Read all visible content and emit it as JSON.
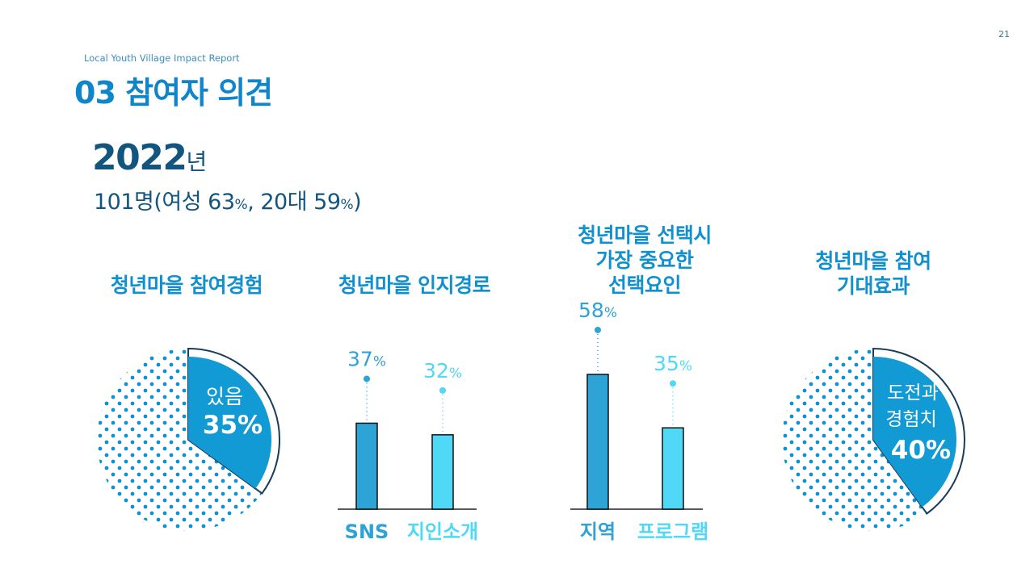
{
  "page_number": "21",
  "report_name": "Local Youth Village Impact Report",
  "section_title": "03 참여자 의견",
  "year": "2022",
  "year_unit": "년",
  "summary": {
    "prefix": "101명(여성 ",
    "female_pct": "63",
    "mid": ", 20대 ",
    "age_pct": "59",
    "pct_sign": "%",
    "close": ")",
    "comma": ""
  },
  "colors": {
    "primary": "#1190cf",
    "dark": "#12557f",
    "bar_dark": "#2ea3d6",
    "bar_light": "#4fd9f7",
    "slice": "#119ad3",
    "dot": "#1190cf"
  },
  "chart_data": [
    {
      "type": "pie",
      "title": "청년마을 참여경험",
      "slices": [
        {
          "label": "있음",
          "value": 35,
          "value_text": "35%"
        },
        {
          "label": "",
          "value": 65
        }
      ]
    },
    {
      "type": "bar",
      "title": "청년마을 인지경로",
      "categories": [
        "SNS",
        "지인소개"
      ],
      "values": [
        37,
        32
      ],
      "value_labels": [
        "37%",
        "32%"
      ]
    },
    {
      "type": "bar",
      "title": "청년마을 선택시 가장 중요한 선택요인",
      "title_lines": [
        "청년마을 선택시",
        "가장 중요한",
        "선택요인"
      ],
      "categories": [
        "지역",
        "프로그램"
      ],
      "values": [
        58,
        35
      ],
      "value_labels": [
        "58%",
        "35%"
      ]
    },
    {
      "type": "pie",
      "title": "청년마을 참여 기대효과",
      "title_lines": [
        "청년마을 참여",
        "기대효과"
      ],
      "slices": [
        {
          "label": "도전과 경험치",
          "label_lines": [
            "도전과",
            "경험치"
          ],
          "value": 40,
          "value_text": "40%"
        },
        {
          "label": "",
          "value": 60
        }
      ]
    }
  ]
}
